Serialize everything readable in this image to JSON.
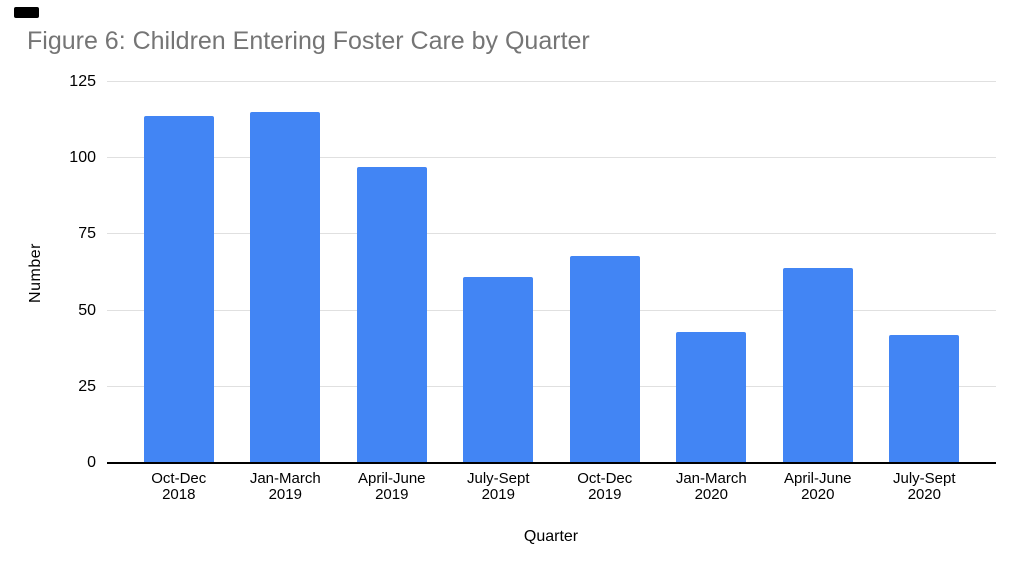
{
  "chart_data": {
    "type": "bar",
    "title": "Figure 6: Children Entering Foster Care by Quarter",
    "xlabel": "Quarter",
    "ylabel": "Number",
    "categories": [
      "Oct-Dec 2018",
      "Jan-March 2019",
      "April-June 2019",
      "July-Sept 2019",
      "Oct-Dec 2019",
      "Jan-March 2020",
      "April-June 2020",
      "July-Sept 2020"
    ],
    "values": [
      114,
      115,
      97,
      61,
      68,
      43,
      64,
      42
    ],
    "ylim": [
      0,
      125
    ],
    "yticks": [
      0,
      25,
      50,
      75,
      100,
      125
    ],
    "grid": true,
    "legend": "none",
    "bar_color": "#4285f4",
    "title_color": "#757575",
    "gridline_color": "#e0e0e0",
    "axis_line_color": "#000000",
    "label_color": "#000000"
  }
}
